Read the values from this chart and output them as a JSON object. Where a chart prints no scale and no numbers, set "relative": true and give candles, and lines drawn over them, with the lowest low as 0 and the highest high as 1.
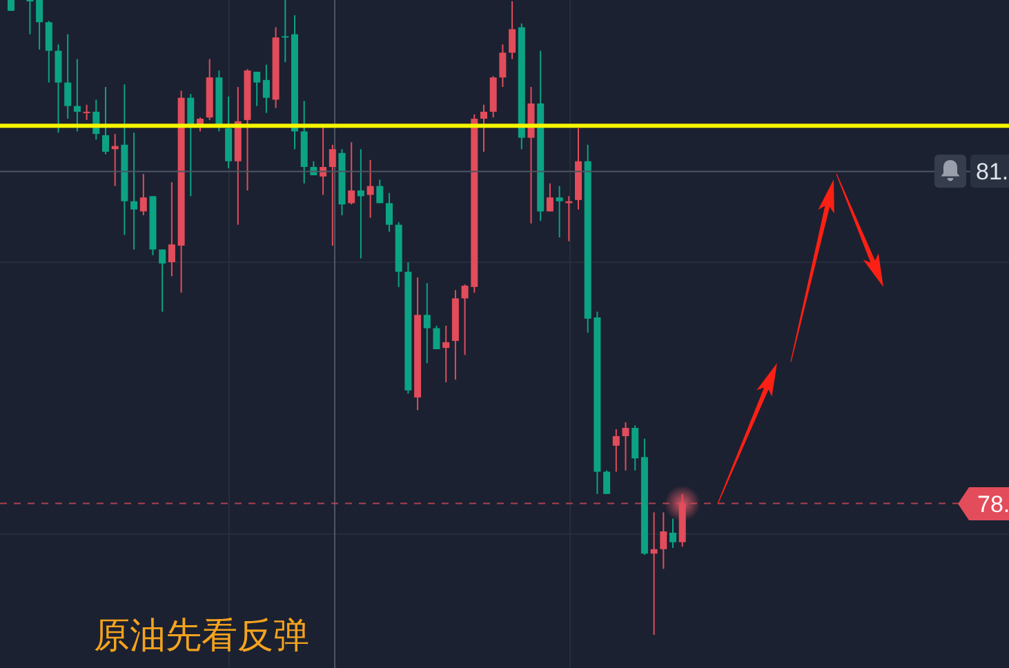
{
  "chart_data": {
    "type": "candlestick",
    "title": "原油先看反弹",
    "relative": true,
    "categories": [
      null,
      null,
      null,
      null,
      null,
      null,
      null,
      null,
      null,
      null,
      null,
      null,
      null,
      null,
      null,
      null,
      null,
      null,
      null,
      null,
      null,
      null,
      null,
      null,
      null,
      null,
      null,
      null,
      null,
      null,
      null,
      null,
      null,
      null,
      null,
      null,
      null,
      null,
      null,
      null,
      null,
      null,
      null,
      null,
      null,
      null,
      null,
      null,
      null,
      null,
      null,
      null,
      null,
      null,
      null,
      null,
      null,
      null,
      null,
      null,
      null,
      null,
      null,
      null,
      null,
      null,
      null,
      null,
      null,
      null,
      null,
      null
    ],
    "ohlc": [
      [
        1,
        1,
        0.983,
        0.983
      ],
      null,
      [
        1,
        1,
        0.946,
        1
      ],
      [
        1,
        1,
        0.922,
        0.965
      ],
      [
        0.965,
        0.967,
        0.87,
        0.92
      ],
      [
        0.92,
        0.93,
        0.791,
        0.87
      ],
      [
        0.87,
        0.946,
        0.813,
        0.833
      ],
      [
        0.833,
        0.907,
        0.793,
        0.824
      ],
      [
        0.822,
        0.835,
        0.811,
        0.824
      ],
      [
        0.824,
        0.843,
        0.78,
        0.789
      ],
      [
        0.787,
        0.863,
        0.757,
        0.761
      ],
      [
        0.765,
        0.789,
        0.707,
        0.77
      ],
      [
        0.772,
        0.867,
        0.63,
        0.683
      ],
      [
        0.683,
        0.791,
        0.607,
        0.67
      ],
      [
        0.667,
        0.726,
        0.661,
        0.689
      ],
      [
        0.691,
        0.691,
        0.598,
        0.607
      ],
      [
        0.607,
        0.607,
        0.509,
        0.585
      ],
      [
        0.587,
        0.713,
        0.565,
        0.615
      ],
      [
        0.613,
        0.857,
        0.539,
        0.846
      ],
      [
        0.846,
        0.852,
        0.691,
        0.804
      ],
      [
        0.804,
        0.815,
        0.793,
        0.813
      ],
      [
        0.815,
        0.907,
        0.811,
        0.878
      ],
      [
        0.878,
        0.889,
        0.793,
        0.8
      ],
      [
        0.798,
        0.848,
        0.735,
        0.746
      ],
      [
        0.746,
        0.863,
        0.646,
        0.809
      ],
      [
        0.811,
        0.891,
        0.7,
        0.889
      ],
      [
        0.887,
        0.887,
        0.833,
        0.87
      ],
      [
        0.874,
        0.898,
        0.822,
        0.846
      ],
      [
        0.843,
        0.957,
        0.83,
        0.941
      ],
      [
        0.943,
        1,
        0.902,
        0.941
      ],
      [
        0.946,
        0.976,
        0.765,
        0.793
      ],
      [
        0.793,
        0.841,
        0.711,
        0.737
      ],
      [
        0.737,
        0.746,
        0.724,
        0.724
      ],
      [
        0.722,
        0.804,
        0.693,
        0.737
      ],
      [
        0.737,
        0.772,
        0.613,
        0.765
      ],
      [
        0.759,
        0.765,
        0.661,
        0.678
      ],
      [
        0.68,
        0.776,
        0.678,
        0.7
      ],
      [
        0.7,
        0.765,
        0.593,
        0.691
      ],
      [
        0.693,
        0.748,
        0.657,
        0.707
      ],
      [
        0.707,
        0.717,
        0.68,
        0.68
      ],
      [
        0.68,
        0.696,
        0.635,
        0.646
      ],
      [
        0.646,
        0.65,
        0.548,
        0.572
      ],
      [
        0.572,
        0.587,
        0.38,
        0.385
      ],
      [
        0.374,
        0.563,
        0.354,
        0.504
      ],
      [
        0.504,
        0.554,
        0.428,
        0.483
      ],
      [
        0.483,
        0.487,
        0.45,
        0.45
      ],
      [
        0.452,
        0.487,
        0.398,
        0.461
      ],
      [
        0.463,
        0.543,
        0.402,
        0.53
      ],
      [
        0.53,
        0.552,
        0.441,
        0.55
      ],
      [
        0.548,
        0.82,
        0.539,
        0.813
      ],
      [
        0.813,
        0.835,
        0.761,
        0.824
      ],
      [
        0.824,
        0.88,
        0.815,
        0.878
      ],
      [
        0.878,
        0.93,
        0.863,
        0.917
      ],
      [
        0.917,
        0.998,
        0.907,
        0.954
      ],
      [
        0.957,
        0.963,
        0.765,
        0.783
      ],
      [
        0.783,
        0.863,
        0.648,
        0.837
      ],
      [
        0.837,
        0.92,
        0.652,
        0.667
      ],
      [
        0.667,
        0.711,
        0.667,
        0.689
      ],
      [
        0.689,
        0.707,
        0.626,
        0.683
      ],
      [
        0.68,
        0.691,
        0.62,
        0.683
      ],
      [
        0.685,
        0.798,
        0.67,
        0.746
      ],
      [
        0.746,
        0.772,
        0.476,
        0.498
      ],
      [
        0.5,
        0.509,
        0.222,
        0.257
      ],
      [
        0.257,
        0.259,
        0.222,
        0.222
      ],
      [
        0.298,
        0.324,
        0.257,
        0.313
      ],
      [
        0.313,
        0.335,
        0.259,
        0.326
      ],
      [
        0.326,
        0.33,
        0.259,
        0.278
      ],
      [
        0.28,
        0.309,
        0.126,
        0.128
      ],
      [
        0.128,
        0.193,
        0,
        0.135
      ],
      [
        0.135,
        0.193,
        0.104,
        0.163
      ],
      [
        0.161,
        0.183,
        0.137,
        0.146
      ],
      [
        0.146,
        0.222,
        0.139,
        0.207
      ]
    ],
    "colors": [
      "#0ca385",
      null,
      "#0ca385",
      "#0ca385",
      "#0ca385",
      "#0ca385",
      "#0ca385",
      "#0ca385",
      "#e24c5b",
      "#0ca385",
      "#0ca385",
      "#e24c5b",
      "#0ca385",
      "#0ca385",
      "#e24c5b",
      "#0ca385",
      "#0ca385",
      "#e24c5b",
      "#e24c5b",
      "#0ca385",
      "#e24c5b",
      "#e24c5b",
      "#0ca385",
      "#0ca385",
      "#e24c5b",
      "#e24c5b",
      "#0ca385",
      "#0ca385",
      "#e24c5b",
      "#0ca385",
      "#0ca385",
      "#0ca385",
      "#0ca385",
      "#e24c5b",
      "#e24c5b",
      "#0ca385",
      "#e24c5b",
      "#0ca385",
      "#e24c5b",
      "#0ca385",
      "#0ca385",
      "#0ca385",
      "#0ca385",
      "#e24c5b",
      "#0ca385",
      "#0ca385",
      "#e24c5b",
      "#e24c5b",
      "#e24c5b",
      "#e24c5b",
      "#e24c5b",
      "#e24c5b",
      "#e24c5b",
      "#e24c5b",
      "#0ca385",
      "#e24c5b",
      "#0ca385",
      "#e24c5b",
      "#0ca385",
      "#e24c5b",
      "#e24c5b",
      "#0ca385",
      "#0ca385",
      "#0ca385",
      "#e24c5b",
      "#e24c5b",
      "#0ca385",
      "#0ca385",
      "#e24c5b",
      "#e24c5b",
      "#0ca385",
      "#e24c5b"
    ],
    "ref_lines": [
      {
        "axis": "y",
        "value": 0.802,
        "color": "#f4f400"
      },
      {
        "axis": "y",
        "value": 0.73,
        "color": "#4f5663"
      },
      {
        "axis": "y",
        "value": 0.207,
        "color": "#e24c5b",
        "line_style": "dashed"
      }
    ],
    "annotations": [
      "81.",
      "78."
    ]
  }
}
